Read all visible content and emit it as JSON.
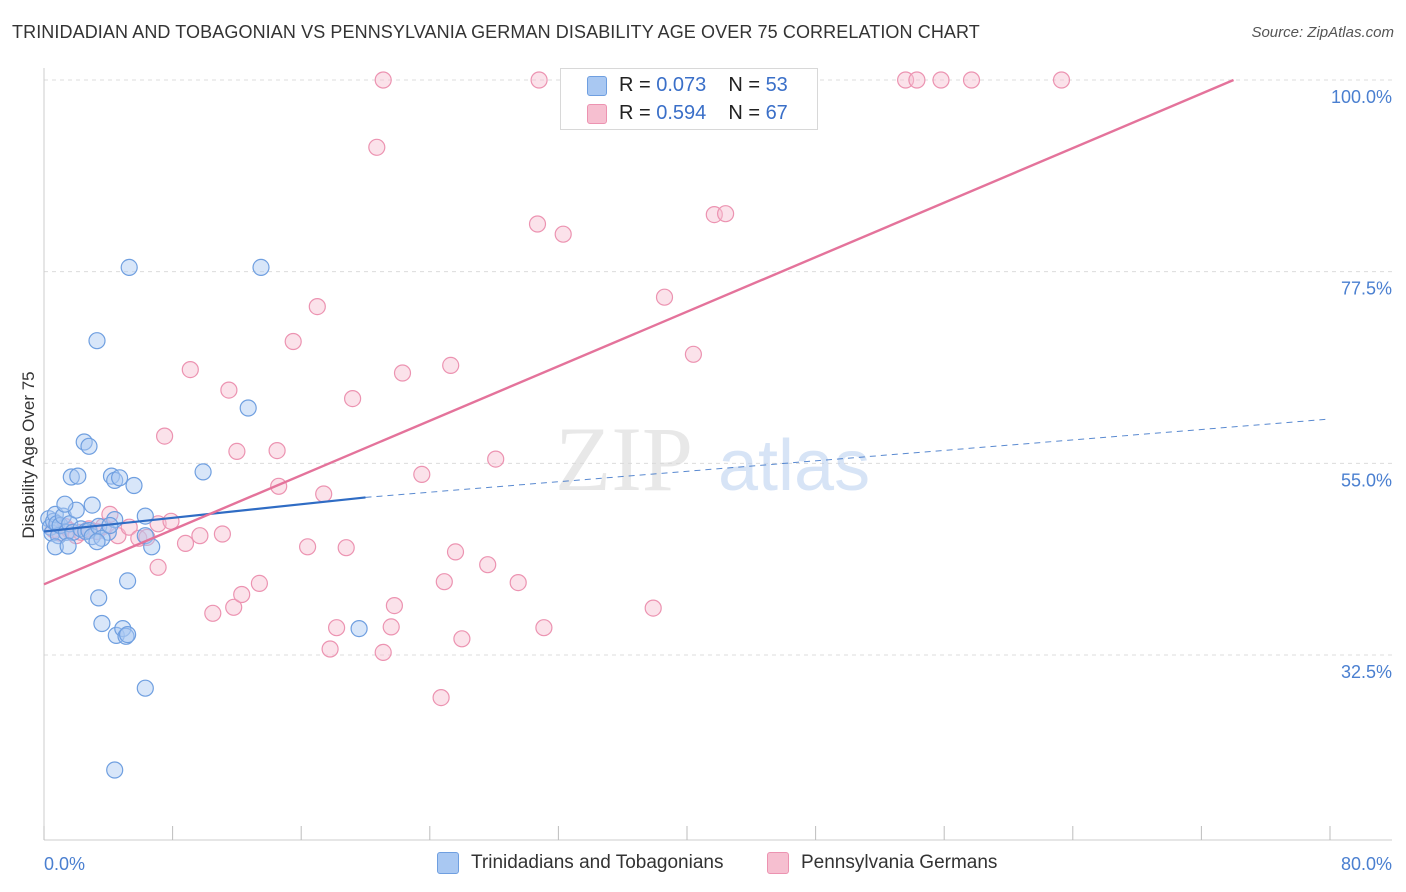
{
  "title": "TRINIDADIAN AND TOBAGONIAN VS PENNSYLVANIA GERMAN DISABILITY AGE OVER 75 CORRELATION CHART",
  "source": "Source: ZipAtlas.com",
  "legend": {
    "r_label": "R =",
    "n_label": "N =",
    "series1": {
      "r": "0.073",
      "n": "53"
    },
    "series2": {
      "r": "0.594",
      "n": "67"
    }
  },
  "colors": {
    "blue_fill": "#a9c8f2",
    "blue_stroke": "#6f9fe0",
    "blue_line": "#2f6cc4",
    "pink_fill": "#f6bfd0",
    "pink_stroke": "#ec93b1",
    "pink_line": "#e4739b"
  },
  "watermark": {
    "zip": "ZIP",
    "atlas": "atlas"
  },
  "chart_data": {
    "type": "scatter",
    "xlabel": "",
    "ylabel": "Disability Age Over 75",
    "xlim": [
      0,
      80
    ],
    "ylim": [
      10,
      100
    ],
    "x_tick_labels": [
      "0.0%",
      "80.0%"
    ],
    "y_ticks": [
      32.5,
      55.0,
      77.5,
      100.0
    ],
    "y_tick_labels": [
      "32.5%",
      "55.0%",
      "77.5%",
      "100.0%"
    ],
    "series": [
      {
        "name": "Trinidadians and Tobagonians",
        "color": "#6f9fe0",
        "trend": {
          "x": [
            0,
            20
          ],
          "y": [
            47.0,
            51.0
          ],
          "dashed_to": [
            80,
            60.2
          ]
        },
        "points": [
          [
            0.3,
            48.5
          ],
          [
            0.4,
            47.5
          ],
          [
            0.5,
            46.8
          ],
          [
            0.6,
            48.2
          ],
          [
            0.7,
            49.0
          ],
          [
            0.8,
            47.9
          ],
          [
            0.9,
            46.5
          ],
          [
            1.0,
            47.7
          ],
          [
            1.2,
            48.8
          ],
          [
            1.4,
            46.9
          ],
          [
            1.6,
            47.9
          ],
          [
            1.8,
            46.9
          ],
          [
            2.0,
            49.5
          ],
          [
            2.3,
            47.3
          ],
          [
            2.6,
            47.0
          ],
          [
            2.8,
            47.1
          ],
          [
            3.0,
            46.4
          ],
          [
            3.4,
            47.6
          ],
          [
            4.0,
            46.9
          ],
          [
            4.4,
            48.4
          ],
          [
            0.7,
            45.2
          ],
          [
            1.5,
            45.3
          ],
          [
            1.3,
            50.2
          ],
          [
            1.7,
            53.4
          ],
          [
            2.1,
            53.5
          ],
          [
            2.5,
            57.5
          ],
          [
            2.8,
            57.0
          ],
          [
            3.0,
            50.1
          ],
          [
            3.6,
            46.2
          ],
          [
            4.1,
            47.7
          ],
          [
            4.2,
            53.5
          ],
          [
            4.4,
            53.0
          ],
          [
            4.7,
            53.3
          ],
          [
            5.6,
            52.4
          ],
          [
            6.3,
            46.5
          ],
          [
            6.3,
            48.8
          ],
          [
            6.7,
            45.2
          ],
          [
            3.3,
            45.8
          ],
          [
            3.4,
            39.2
          ],
          [
            3.6,
            36.2
          ],
          [
            4.5,
            34.8
          ],
          [
            4.9,
            35.6
          ],
          [
            5.1,
            34.7
          ],
          [
            5.2,
            34.9
          ],
          [
            6.3,
            28.6
          ],
          [
            4.4,
            19.0
          ],
          [
            5.2,
            41.2
          ],
          [
            5.3,
            78.0
          ],
          [
            3.3,
            69.4
          ],
          [
            13.5,
            78.0
          ],
          [
            12.7,
            61.5
          ],
          [
            9.9,
            54.0
          ],
          [
            19.6,
            35.6
          ]
        ]
      },
      {
        "name": "Pennsylvania Germans",
        "color": "#ec93b1",
        "trend": {
          "x": [
            0,
            74
          ],
          "y": [
            40.8,
            100.0
          ]
        },
        "points": [
          [
            0.6,
            47.2
          ],
          [
            1.0,
            46.8
          ],
          [
            1.3,
            47.6
          ],
          [
            1.6,
            47.1
          ],
          [
            2.0,
            46.5
          ],
          [
            2.3,
            46.9
          ],
          [
            2.8,
            47.3
          ],
          [
            3.3,
            47.0
          ],
          [
            3.7,
            47.6
          ],
          [
            4.1,
            49.0
          ],
          [
            4.6,
            46.5
          ],
          [
            5.3,
            47.5
          ],
          [
            5.9,
            46.2
          ],
          [
            6.4,
            46.3
          ],
          [
            7.1,
            47.9
          ],
          [
            7.9,
            48.2
          ],
          [
            8.8,
            45.6
          ],
          [
            9.7,
            46.5
          ],
          [
            11.1,
            46.7
          ],
          [
            11.8,
            38.1
          ],
          [
            12.3,
            39.6
          ],
          [
            13.4,
            40.9
          ],
          [
            14.5,
            56.5
          ],
          [
            14.6,
            52.3
          ],
          [
            16.4,
            45.2
          ],
          [
            17.4,
            51.4
          ],
          [
            17.8,
            33.2
          ],
          [
            18.2,
            35.7
          ],
          [
            18.8,
            45.1
          ],
          [
            7.1,
            42.8
          ],
          [
            10.5,
            37.4
          ],
          [
            7.5,
            58.2
          ],
          [
            9.1,
            66.0
          ],
          [
            11.5,
            63.6
          ],
          [
            12.0,
            56.4
          ],
          [
            15.5,
            69.3
          ],
          [
            17.0,
            73.4
          ],
          [
            19.2,
            62.6
          ],
          [
            21.1,
            32.8
          ],
          [
            21.6,
            35.8
          ],
          [
            21.8,
            38.3
          ],
          [
            22.3,
            65.6
          ],
          [
            23.5,
            53.7
          ],
          [
            24.7,
            27.5
          ],
          [
            24.9,
            41.1
          ],
          [
            25.3,
            66.5
          ],
          [
            25.6,
            44.6
          ],
          [
            26.0,
            34.4
          ],
          [
            27.6,
            43.1
          ],
          [
            28.1,
            55.5
          ],
          [
            29.5,
            41.0
          ],
          [
            30.7,
            83.1
          ],
          [
            31.1,
            35.7
          ],
          [
            32.3,
            81.9
          ],
          [
            37.9,
            38.0
          ],
          [
            38.6,
            74.5
          ],
          [
            40.4,
            67.8
          ],
          [
            41.7,
            84.2
          ],
          [
            42.4,
            84.3
          ],
          [
            20.7,
            92.1
          ],
          [
            21.1,
            100.0
          ],
          [
            30.8,
            100.0
          ],
          [
            53.6,
            100.0
          ],
          [
            54.3,
            100.0
          ],
          [
            55.8,
            100.0
          ],
          [
            57.7,
            100.0
          ],
          [
            63.3,
            100.0
          ]
        ]
      }
    ]
  }
}
